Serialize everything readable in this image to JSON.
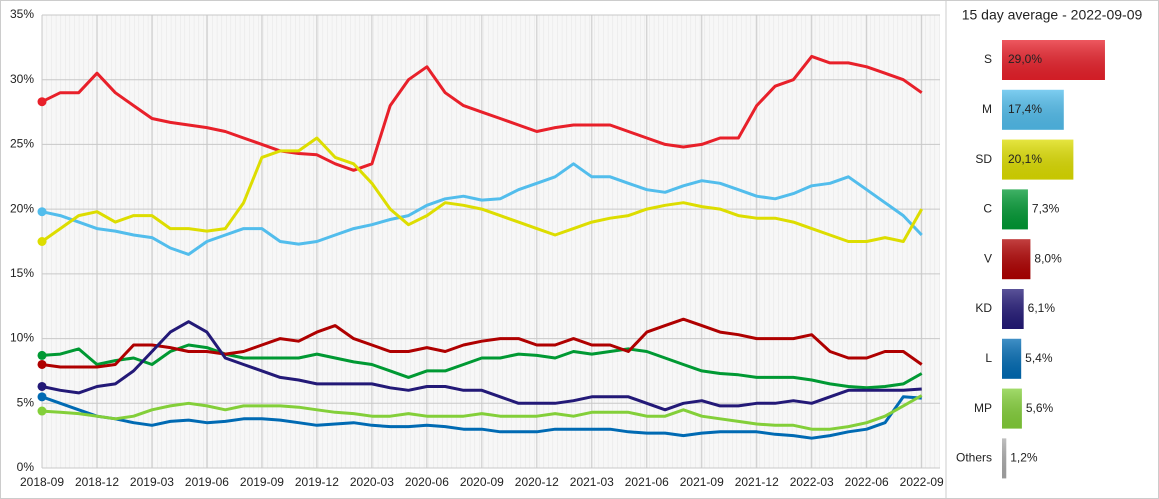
{
  "chart_data": [
    {
      "type": "line",
      "x": [
        "2018-09",
        "2018-10",
        "2018-11",
        "2018-12",
        "2019-01",
        "2019-02",
        "2019-03",
        "2019-04",
        "2019-05",
        "2019-06",
        "2019-07",
        "2019-08",
        "2019-09",
        "2019-10",
        "2019-11",
        "2019-12",
        "2020-01",
        "2020-02",
        "2020-03",
        "2020-04",
        "2020-05",
        "2020-06",
        "2020-07",
        "2020-08",
        "2020-09",
        "2020-10",
        "2020-11",
        "2020-12",
        "2021-01",
        "2021-02",
        "2021-03",
        "2021-04",
        "2021-05",
        "2021-06",
        "2021-07",
        "2021-08",
        "2021-09",
        "2021-10",
        "2021-11",
        "2021-12",
        "2022-01",
        "2022-02",
        "2022-03",
        "2022-04",
        "2022-05",
        "2022-06",
        "2022-07",
        "2022-08",
        "2022-09"
      ],
      "xlim": [
        "2018-09",
        "2022-10"
      ],
      "xticks": [
        "2018-09",
        "2018-12",
        "2019-03",
        "2019-06",
        "2019-09",
        "2019-12",
        "2020-03",
        "2020-06",
        "2020-09",
        "2020-12",
        "2021-03",
        "2021-06",
        "2021-09",
        "2021-12",
        "2022-03",
        "2022-06",
        "2022-09"
      ],
      "ylim": [
        0,
        35
      ],
      "yticks": [
        {
          "value": 0,
          "label": "0%"
        },
        {
          "value": 5,
          "label": "5%"
        },
        {
          "value": 10,
          "label": "10%"
        },
        {
          "value": 15,
          "label": "15%"
        },
        {
          "value": 20,
          "label": "20%"
        },
        {
          "value": 25,
          "label": "25%"
        },
        {
          "value": 30,
          "label": "30%"
        },
        {
          "value": 35,
          "label": "35%"
        }
      ],
      "grid": true,
      "series": [
        {
          "name": "S",
          "color": "#e8202a",
          "values": [
            28.3,
            29,
            29,
            30.5,
            29,
            28,
            27,
            26.7,
            26.5,
            26.3,
            26.0,
            25.5,
            25,
            24.5,
            24.3,
            24.2,
            23.5,
            23,
            23.5,
            28,
            30,
            31,
            29,
            28,
            27.5,
            27,
            26.5,
            26,
            26.3,
            26.5,
            26.5,
            26.5,
            26,
            25.5,
            25,
            24.8,
            25,
            25.5,
            25.5,
            28,
            29.5,
            30,
            31.8,
            31.3,
            31.3,
            31,
            30.5,
            30,
            29
          ]
        },
        {
          "name": "M",
          "color": "#52bdec",
          "values": [
            19.8,
            19.5,
            19.0,
            18.5,
            18.3,
            18.0,
            17.8,
            17.0,
            16.5,
            17.5,
            18.0,
            18.5,
            18.5,
            17.5,
            17.3,
            17.5,
            18.0,
            18.5,
            18.8,
            19.2,
            19.5,
            20.3,
            20.8,
            21,
            20.7,
            20.8,
            21.5,
            22,
            22.5,
            23.5,
            22.5,
            22.5,
            22,
            21.5,
            21.3,
            21.8,
            22.2,
            22.0,
            21.5,
            21,
            20.8,
            21.2,
            21.8,
            22.0,
            22.5,
            21.5,
            20.5,
            19.5,
            18.0
          ]
        },
        {
          "name": "SD",
          "color": "#dddd00",
          "values": [
            17.5,
            18.5,
            19.5,
            19.8,
            19.0,
            19.5,
            19.5,
            18.5,
            18.5,
            18.3,
            18.5,
            20.5,
            24,
            24.5,
            24.5,
            25.5,
            24,
            23.5,
            22,
            20,
            18.8,
            19.5,
            20.5,
            20.3,
            20,
            19.5,
            19.0,
            18.5,
            18.0,
            18.5,
            19.0,
            19.3,
            19.5,
            20.0,
            20.3,
            20.5,
            20.2,
            20.0,
            19.5,
            19.3,
            19.3,
            19.0,
            18.5,
            18.0,
            17.5,
            17.5,
            17.8,
            17.5,
            20.0
          ]
        },
        {
          "name": "C",
          "color": "#009933",
          "values": [
            8.7,
            8.8,
            9.2,
            8.0,
            8.3,
            8.5,
            8.0,
            9.0,
            9.5,
            9.3,
            8.8,
            8.5,
            8.5,
            8.5,
            8.5,
            8.8,
            8.5,
            8.2,
            8.0,
            7.5,
            7.0,
            7.5,
            7.5,
            8.0,
            8.5,
            8.5,
            8.8,
            8.7,
            8.5,
            9.0,
            8.8,
            9.0,
            9.2,
            9.0,
            8.5,
            8.0,
            7.5,
            7.3,
            7.2,
            7.0,
            7.0,
            7.0,
            6.8,
            6.5,
            6.3,
            6.2,
            6.3,
            6.5,
            7.3
          ]
        },
        {
          "name": "V",
          "color": "#af0000",
          "values": [
            8.0,
            7.8,
            7.8,
            7.8,
            8.0,
            9.5,
            9.5,
            9.3,
            9.0,
            9.0,
            8.8,
            9.0,
            9.5,
            10.0,
            9.8,
            10.5,
            11.0,
            10.0,
            9.5,
            9.0,
            9.0,
            9.3,
            9.0,
            9.5,
            9.8,
            10.0,
            10.0,
            9.5,
            9.5,
            10.0,
            9.5,
            9.5,
            9.0,
            10.5,
            11.0,
            11.5,
            11.0,
            10.5,
            10.3,
            10.0,
            10.0,
            10.0,
            10.3,
            9.0,
            8.5,
            8.5,
            9.0,
            9.0,
            8.0
          ]
        },
        {
          "name": "KD",
          "color": "#231977",
          "values": [
            6.3,
            6.0,
            5.8,
            6.3,
            6.5,
            7.5,
            9.0,
            10.5,
            11.3,
            10.5,
            8.5,
            8.0,
            7.5,
            7.0,
            6.8,
            6.5,
            6.5,
            6.5,
            6.5,
            6.2,
            6.0,
            6.3,
            6.3,
            6.0,
            6.0,
            5.5,
            5.0,
            5.0,
            5.0,
            5.2,
            5.5,
            5.5,
            5.5,
            5.0,
            4.5,
            5.0,
            5.2,
            4.8,
            4.8,
            5.0,
            5.0,
            5.2,
            5.0,
            5.5,
            6.0,
            6.0,
            6.0,
            6.0,
            6.1
          ]
        },
        {
          "name": "L",
          "color": "#006ab3",
          "values": [
            5.5,
            5.0,
            4.5,
            4.0,
            3.8,
            3.5,
            3.3,
            3.6,
            3.7,
            3.5,
            3.6,
            3.8,
            3.8,
            3.7,
            3.5,
            3.3,
            3.4,
            3.5,
            3.3,
            3.2,
            3.2,
            3.3,
            3.2,
            3.0,
            3.0,
            2.8,
            2.8,
            2.8,
            3.0,
            3.0,
            3.0,
            3.0,
            2.8,
            2.7,
            2.7,
            2.5,
            2.7,
            2.8,
            2.8,
            2.8,
            2.6,
            2.5,
            2.3,
            2.5,
            2.8,
            3.0,
            3.5,
            5.5,
            5.4
          ]
        },
        {
          "name": "MP",
          "color": "#83cf39",
          "values": [
            4.4,
            4.3,
            4.2,
            4.0,
            3.8,
            4.0,
            4.5,
            4.8,
            5.0,
            4.8,
            4.5,
            4.8,
            4.8,
            4.8,
            4.7,
            4.5,
            4.3,
            4.2,
            4.0,
            4.0,
            4.2,
            4.0,
            4.0,
            4.0,
            4.2,
            4.0,
            4.0,
            4.0,
            4.2,
            4.0,
            4.3,
            4.3,
            4.3,
            4.0,
            4.0,
            4.5,
            4.0,
            3.8,
            3.6,
            3.4,
            3.3,
            3.3,
            3.0,
            3.0,
            3.2,
            3.5,
            4.0,
            4.8,
            5.6
          ]
        }
      ]
    },
    {
      "type": "barh",
      "title": "15 day average - 2022-09-09",
      "categories": [
        "S",
        "M",
        "SD",
        "C",
        "V",
        "KD",
        "L",
        "MP",
        "Others"
      ],
      "values": [
        29.0,
        17.4,
        20.1,
        7.3,
        8.0,
        6.1,
        5.4,
        5.6,
        1.2
      ],
      "value_labels": [
        "29,0%",
        "17,4%",
        "20,1%",
        "7,3%",
        "8,0%",
        "6,1%",
        "5,4%",
        "5,6%",
        "1,2%"
      ],
      "colors": [
        "#e8202a",
        "#52bdec",
        "#dddd00",
        "#009933",
        "#af0000",
        "#231977",
        "#006ab3",
        "#83cf39",
        "#aaaaaa"
      ]
    }
  ]
}
